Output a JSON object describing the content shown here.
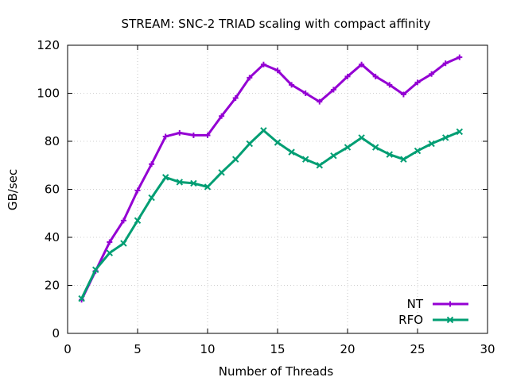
{
  "chart_data": {
    "type": "line",
    "title": "STREAM: SNC-2 TRIAD scaling with compact affinity",
    "xlabel": "Number of Threads",
    "ylabel": "GB/sec",
    "xlim": [
      0,
      30
    ],
    "ylim": [
      0,
      120
    ],
    "xticks": [
      0,
      5,
      10,
      15,
      20,
      25,
      30
    ],
    "yticks": [
      0,
      20,
      40,
      60,
      80,
      100,
      120
    ],
    "grid": true,
    "legend_position": "bottom-right",
    "x": [
      1,
      2,
      3,
      4,
      5,
      6,
      7,
      8,
      9,
      10,
      11,
      12,
      13,
      14,
      15,
      16,
      17,
      18,
      19,
      20,
      21,
      22,
      23,
      24,
      25,
      26,
      27,
      28
    ],
    "series": [
      {
        "name": "NT",
        "color": "#9400d3",
        "marker": "plus",
        "values": [
          14,
          26,
          38,
          47,
          59.5,
          70.5,
          82,
          83.5,
          82.5,
          82.5,
          90.5,
          98,
          106.5,
          112,
          109.5,
          103.5,
          100,
          96.5,
          101.5,
          107,
          112,
          107,
          103.5,
          99.5,
          104.5,
          108,
          112.5,
          115
        ]
      },
      {
        "name": "RFO",
        "color": "#009e73",
        "marker": "x",
        "values": [
          14.5,
          26.5,
          33.5,
          37.5,
          47,
          56.5,
          65,
          63,
          62.5,
          61,
          67,
          72.5,
          79,
          84.5,
          79.5,
          75.5,
          72.5,
          70,
          74,
          77.5,
          81.5,
          77.5,
          74.5,
          72.5,
          76,
          79,
          81.5,
          84
        ]
      }
    ]
  }
}
